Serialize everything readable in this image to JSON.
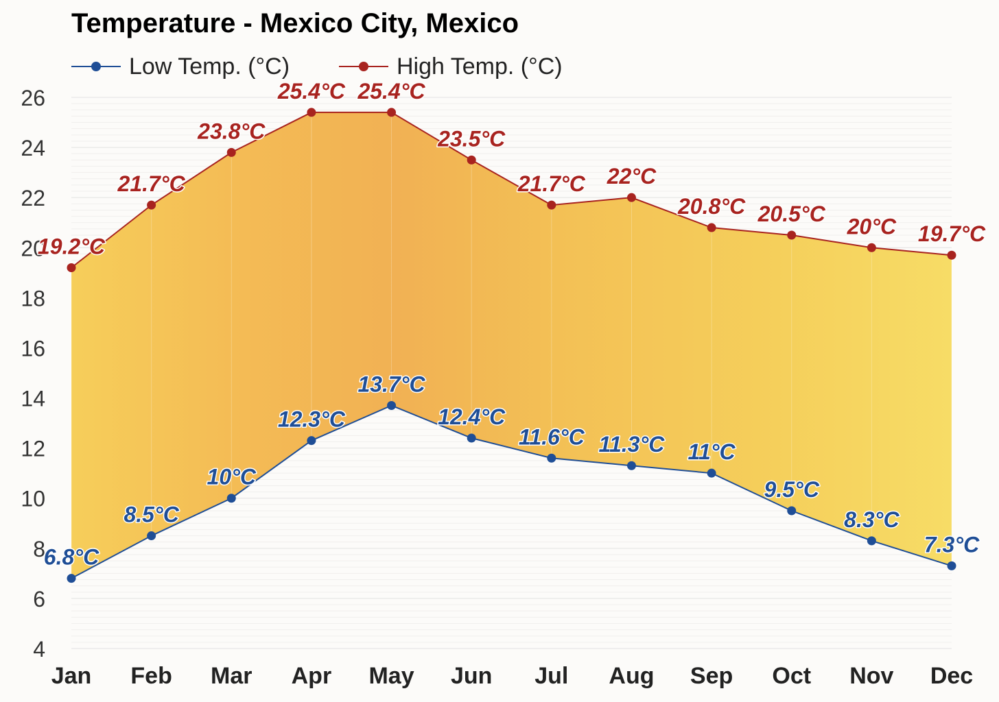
{
  "chart_data": {
    "type": "line",
    "title": "Temperature - Mexico City, Mexico",
    "categories": [
      "Jan",
      "Feb",
      "Mar",
      "Apr",
      "May",
      "Jun",
      "Jul",
      "Aug",
      "Sep",
      "Oct",
      "Nov",
      "Dec"
    ],
    "series": [
      {
        "name": "Low Temp. (°C)",
        "color": "#1f4e96",
        "values": [
          6.8,
          8.5,
          10,
          12.3,
          13.7,
          12.4,
          11.6,
          11.3,
          11,
          9.5,
          8.3,
          7.3
        ],
        "labels": [
          "6.8°C",
          "8.5°C",
          "10°C",
          "12.3°C",
          "13.7°C",
          "12.4°C",
          "11.6°C",
          "11.3°C",
          "11°C",
          "9.5°C",
          "8.3°C",
          "7.3°C"
        ]
      },
      {
        "name": "High Temp. (°C)",
        "color": "#a8231f",
        "values": [
          19.2,
          21.7,
          23.8,
          25.4,
          25.4,
          23.5,
          21.7,
          22,
          20.8,
          20.5,
          20,
          19.7
        ],
        "labels": [
          "19.2°C",
          "21.7°C",
          "23.8°C",
          "25.4°C",
          "25.4°C",
          "23.5°C",
          "21.7°C",
          "22°C",
          "20.8°C",
          "20.5°C",
          "20°C",
          "19.7°C"
        ]
      }
    ],
    "ylim": [
      4,
      26
    ],
    "yticks": [
      4,
      6,
      8,
      10,
      12,
      14,
      16,
      18,
      20,
      22,
      24,
      26
    ],
    "xlabel": "",
    "ylabel": "",
    "grid": true,
    "legend": "top-left",
    "band_fill": "gradient between low and high, warm orange in spring to yellow"
  }
}
